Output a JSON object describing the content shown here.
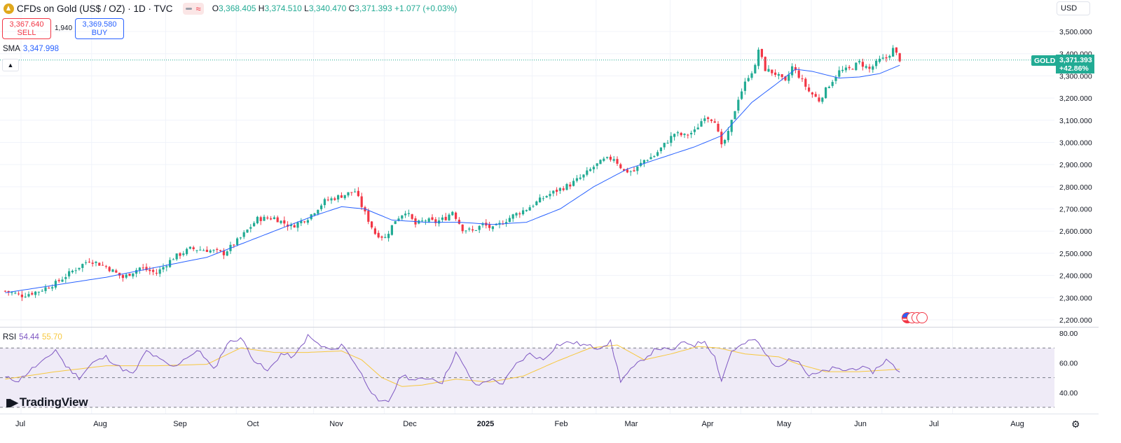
{
  "header": {
    "symbol_title": "CFDs on Gold (US$ / OZ) · 1D · TVC",
    "ohlc": [
      {
        "k": "O",
        "v": "3,368.405"
      },
      {
        "k": "H",
        "v": "3,374.510"
      },
      {
        "k": "L",
        "v": "3,340.470"
      },
      {
        "k": "C",
        "v": "3,371.393 +1.077 (+0.03%)"
      }
    ]
  },
  "trade": {
    "sell_price": "3,367.640",
    "sell_label": "SELL",
    "spread": "1,940",
    "buy_price": "3,369.580",
    "buy_label": "BUY"
  },
  "sma": {
    "label": "SMA",
    "value": "3,347.998"
  },
  "currency": "USD",
  "price_tag": {
    "symbol": "GOLD",
    "price": "3,371.393",
    "change": "+42.86%"
  },
  "rsi": {
    "label": "RSI",
    "value": "54.44",
    "ma_value": "55.70"
  },
  "branding": {
    "logo_text": "TradingView"
  },
  "colors": {
    "up": "#22ab94",
    "down": "#f23645",
    "sma": "#2962ff",
    "rsi": "#7e57c2",
    "rsi_ma": "#f7c83f",
    "rsi_band": "#efebf7"
  },
  "chart_data": [
    {
      "type": "candlestick",
      "title": "CFDs on Gold (US$ / OZ) · 1D · TVC",
      "ylim": [
        2180,
        3530
      ],
      "y_ticks": [
        2200,
        2300,
        2400,
        2500,
        2600,
        2700,
        2800,
        2900,
        3000,
        3100,
        3200,
        3300,
        3400,
        3500
      ],
      "y_tick_labels": [
        "2,200.000",
        "2,300.000",
        "2,400.000",
        "2,500.000",
        "2,600.000",
        "2,700.000",
        "2,800.000",
        "2,900.000",
        "3,000.000",
        "3,100.000",
        "3,200.000",
        "3,300.000",
        "3,400.000",
        "3,500.000"
      ],
      "x_tick_labels": [
        "Jul",
        "Aug",
        "Sep",
        "Oct",
        "Nov",
        "Dec",
        "2025",
        "Feb",
        "Mar",
        "Apr",
        "May",
        "Jun",
        "Jul",
        "Aug"
      ],
      "anchors_close": [
        [
          0,
          2330
        ],
        [
          5,
          2310
        ],
        [
          10,
          2330
        ],
        [
          15,
          2365
        ],
        [
          20,
          2420
        ],
        [
          25,
          2470
        ],
        [
          30,
          2440
        ],
        [
          35,
          2390
        ],
        [
          40,
          2435
        ],
        [
          45,
          2410
        ],
        [
          50,
          2480
        ],
        [
          55,
          2520
        ],
        [
          60,
          2515
        ],
        [
          65,
          2500
        ],
        [
          70,
          2570
        ],
        [
          75,
          2655
        ],
        [
          80,
          2660
        ],
        [
          85,
          2620
        ],
        [
          90,
          2660
        ],
        [
          95,
          2735
        ],
        [
          100,
          2760
        ],
        [
          104,
          2780
        ],
        [
          107,
          2680
        ],
        [
          110,
          2590
        ],
        [
          113,
          2570
        ],
        [
          116,
          2650
        ],
        [
          119,
          2690
        ],
        [
          122,
          2630
        ],
        [
          125,
          2650
        ],
        [
          128,
          2640
        ],
        [
          131,
          2660
        ],
        [
          133,
          2690
        ],
        [
          136,
          2610
        ],
        [
          139,
          2600
        ],
        [
          142,
          2630
        ],
        [
          145,
          2610
        ],
        [
          148,
          2640
        ],
        [
          151,
          2670
        ],
        [
          155,
          2700
        ],
        [
          158,
          2730
        ],
        [
          161,
          2760
        ],
        [
          165,
          2790
        ],
        [
          168,
          2810
        ],
        [
          172,
          2850
        ],
        [
          175,
          2890
        ],
        [
          178,
          2920
        ],
        [
          181,
          2930
        ],
        [
          184,
          2870
        ],
        [
          187,
          2870
        ],
        [
          190,
          2920
        ],
        [
          193,
          2940
        ],
        [
          196,
          2990
        ],
        [
          199,
          3040
        ],
        [
          202,
          3030
        ],
        [
          205,
          3050
        ],
        [
          208,
          3120
        ],
        [
          211,
          3100
        ],
        [
          213,
          2980
        ],
        [
          215,
          3040
        ],
        [
          218,
          3200
        ],
        [
          221,
          3300
        ],
        [
          223,
          3340
        ],
        [
          224,
          3420
        ],
        [
          226,
          3330
        ],
        [
          229,
          3310
        ],
        [
          232,
          3270
        ],
        [
          234,
          3340
        ],
        [
          236,
          3300
        ],
        [
          239,
          3230
        ],
        [
          242,
          3190
        ],
        [
          245,
          3260
        ],
        [
          248,
          3320
        ],
        [
          251,
          3330
        ],
        [
          254,
          3360
        ],
        [
          257,
          3330
        ],
        [
          260,
          3370
        ],
        [
          262,
          3380
        ],
        [
          264,
          3420
        ],
        [
          266,
          3375
        ]
      ],
      "sma": [
        [
          0,
          2322
        ],
        [
          30,
          2392
        ],
        [
          60,
          2482
        ],
        [
          80,
          2600
        ],
        [
          92,
          2670
        ],
        [
          100,
          2710
        ],
        [
          107,
          2700
        ],
        [
          115,
          2650
        ],
        [
          125,
          2640
        ],
        [
          135,
          2640
        ],
        [
          145,
          2630
        ],
        [
          155,
          2640
        ],
        [
          165,
          2700
        ],
        [
          175,
          2800
        ],
        [
          185,
          2880
        ],
        [
          195,
          2930
        ],
        [
          205,
          2980
        ],
        [
          213,
          3030
        ],
        [
          222,
          3180
        ],
        [
          229,
          3260
        ],
        [
          235,
          3330
        ],
        [
          240,
          3320
        ],
        [
          248,
          3290
        ],
        [
          254,
          3295
        ],
        [
          260,
          3310
        ],
        [
          266,
          3348
        ]
      ],
      "last_price": 3371.393
    },
    {
      "type": "line",
      "name": "RSI",
      "ylim": [
        30,
        80
      ],
      "y_ticks": [
        40,
        60,
        80
      ],
      "y_tick_labels": [
        "40.00",
        "60.00",
        "80.00"
      ],
      "levels": [
        30,
        50,
        70
      ],
      "rsi": [
        [
          0,
          50
        ],
        [
          4,
          48
        ],
        [
          8,
          56
        ],
        [
          12,
          62
        ],
        [
          15,
          69
        ],
        [
          18,
          58
        ],
        [
          22,
          50
        ],
        [
          26,
          60
        ],
        [
          30,
          64
        ],
        [
          34,
          57
        ],
        [
          38,
          52
        ],
        [
          42,
          68
        ],
        [
          46,
          62
        ],
        [
          50,
          57
        ],
        [
          54,
          64
        ],
        [
          58,
          68
        ],
        [
          62,
          55
        ],
        [
          66,
          73
        ],
        [
          70,
          77
        ],
        [
          74,
          62
        ],
        [
          78,
          54
        ],
        [
          82,
          66
        ],
        [
          86,
          64
        ],
        [
          90,
          78
        ],
        [
          94,
          71
        ],
        [
          98,
          68
        ],
        [
          100,
          73
        ],
        [
          104,
          60
        ],
        [
          107,
          48
        ],
        [
          111,
          33
        ],
        [
          114,
          34
        ],
        [
          118,
          52
        ],
        [
          122,
          48
        ],
        [
          126,
          50
        ],
        [
          130,
          47
        ],
        [
          134,
          67
        ],
        [
          137,
          55
        ],
        [
          140,
          44
        ],
        [
          144,
          49
        ],
        [
          148,
          46
        ],
        [
          152,
          59
        ],
        [
          156,
          66
        ],
        [
          160,
          62
        ],
        [
          164,
          72
        ],
        [
          168,
          74
        ],
        [
          172,
          72
        ],
        [
          176,
          70
        ],
        [
          180,
          74
        ],
        [
          183,
          48
        ],
        [
          186,
          55
        ],
        [
          190,
          63
        ],
        [
          194,
          70
        ],
        [
          198,
          68
        ],
        [
          202,
          74
        ],
        [
          205,
          72
        ],
        [
          208,
          75
        ],
        [
          211,
          64
        ],
        [
          213,
          48
        ],
        [
          216,
          68
        ],
        [
          220,
          73
        ],
        [
          223,
          76
        ],
        [
          226,
          66
        ],
        [
          230,
          56
        ],
        [
          233,
          64
        ],
        [
          236,
          61
        ],
        [
          239,
          51
        ],
        [
          242,
          53
        ],
        [
          246,
          56
        ],
        [
          250,
          55
        ],
        [
          254,
          57
        ],
        [
          258,
          54
        ],
        [
          262,
          62
        ],
        [
          266,
          54
        ]
      ],
      "rsi_ma": [
        [
          0,
          49
        ],
        [
          15,
          54
        ],
        [
          30,
          58
        ],
        [
          45,
          58
        ],
        [
          60,
          59
        ],
        [
          70,
          70
        ],
        [
          80,
          67
        ],
        [
          90,
          67
        ],
        [
          100,
          68
        ],
        [
          106,
          62
        ],
        [
          112,
          50
        ],
        [
          118,
          44
        ],
        [
          124,
          45
        ],
        [
          134,
          49
        ],
        [
          144,
          47
        ],
        [
          154,
          51
        ],
        [
          164,
          61
        ],
        [
          174,
          70
        ],
        [
          182,
          72
        ],
        [
          190,
          62
        ],
        [
          198,
          66
        ],
        [
          206,
          71
        ],
        [
          212,
          70
        ],
        [
          220,
          66
        ],
        [
          230,
          64
        ],
        [
          236,
          59
        ],
        [
          244,
          54
        ],
        [
          254,
          54
        ],
        [
          266,
          55.7
        ]
      ]
    }
  ]
}
